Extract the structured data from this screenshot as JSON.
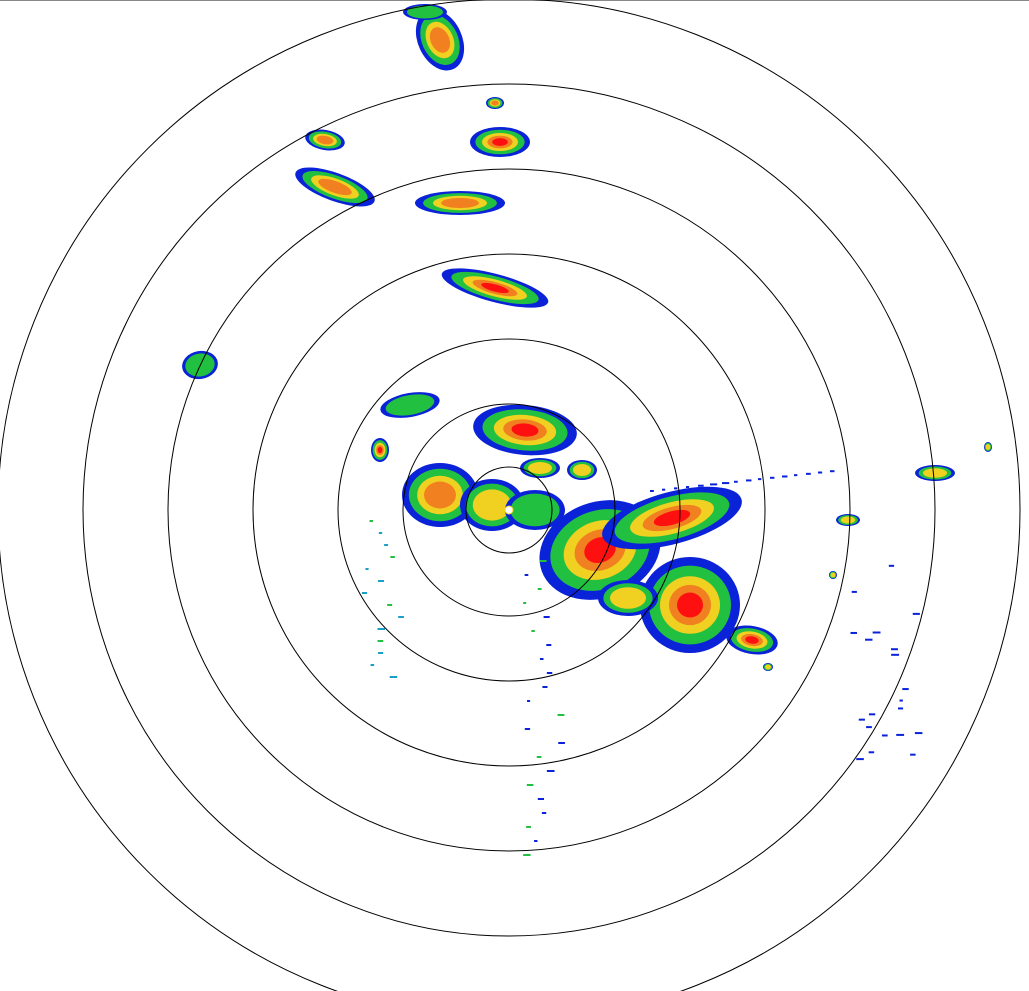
{
  "display": {
    "type": "radar-ppi",
    "range_ring_count": 7,
    "ring_color": "#000000",
    "background": "#ffffff"
  },
  "reflectivity_palette": {
    "light": "#0a22d8",
    "light_moderate": "#1aa0c8",
    "moderate": "#22c040",
    "moderate_bright": "#33e040",
    "heavy": "#f0d020",
    "heavy_orange": "#f08020",
    "very_heavy": "#ff1010"
  }
}
